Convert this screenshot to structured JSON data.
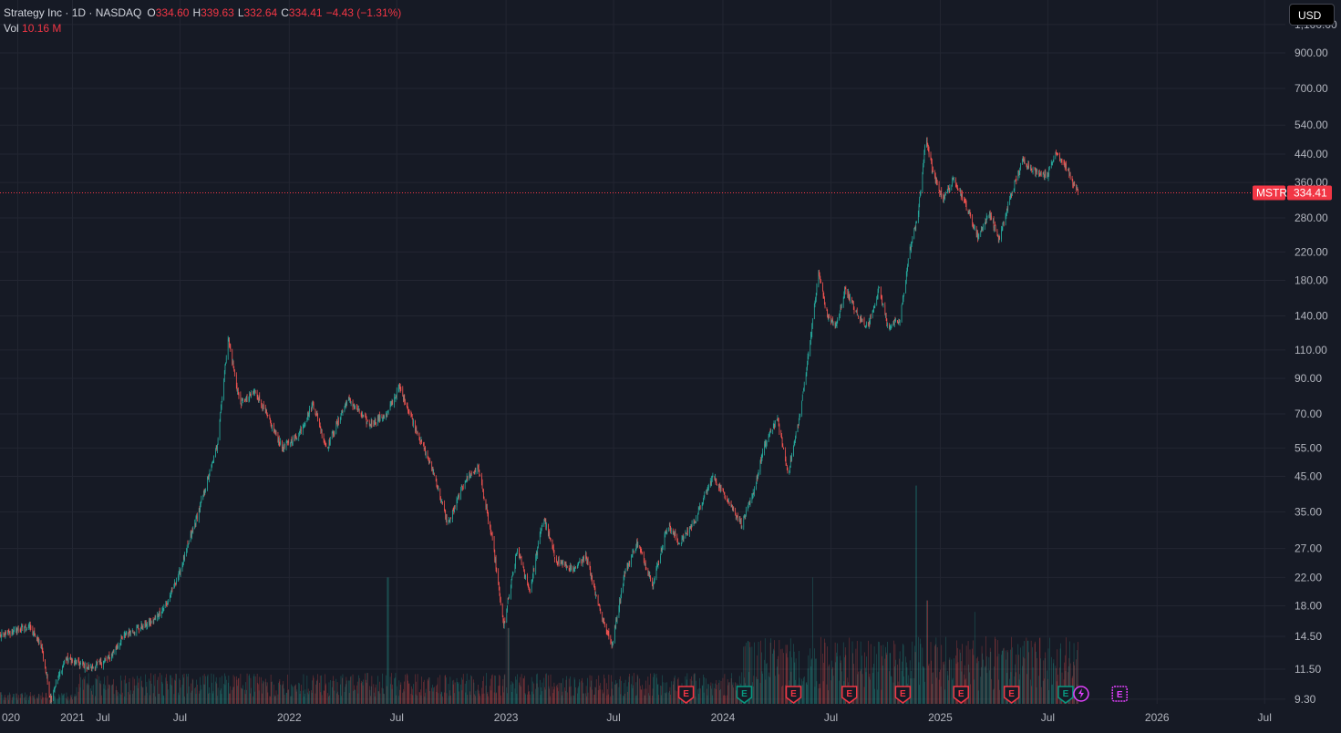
{
  "legend": {
    "symbol_line": "Strategy Inc · 1D · NASDAQ",
    "o_label": "O",
    "o_value": "334.60",
    "h_label": "H",
    "h_value": "339.63",
    "l_label": "L",
    "l_value": "332.64",
    "c_label": "C",
    "c_value": "334.41",
    "change": "−4.43 (−1.31%)",
    "vol_label": "Vol",
    "vol_value": "10.16 M"
  },
  "currency": "USD",
  "colors": {
    "background": "#161a25",
    "grid": "#232632",
    "up": "#26a69a",
    "down": "#ef5350",
    "price_line": "#f23645",
    "earnings_up": "#089981",
    "earnings_down": "#f23645",
    "upcoming": "#e040fb"
  },
  "chart_data": {
    "type": "candlestick",
    "symbol": "MSTR",
    "interval": "1D",
    "y_scale": "log",
    "ylim": [
      9.0,
      1150
    ],
    "xlim": [
      "2020-09-01",
      "2026-08-05"
    ],
    "last_price": 334.41,
    "last_price_label": "334.41",
    "y_ticks": [
      {
        "v": 9.3,
        "t": "9.30"
      },
      {
        "v": 11.5,
        "t": "11.50"
      },
      {
        "v": 14.5,
        "t": "14.50"
      },
      {
        "v": 18,
        "t": "18.00"
      },
      {
        "v": 22,
        "t": "22.00"
      },
      {
        "v": 27,
        "t": "27.00"
      },
      {
        "v": 35,
        "t": "35.00"
      },
      {
        "v": 45,
        "t": "45.00"
      },
      {
        "v": 55,
        "t": "55.00"
      },
      {
        "v": 70,
        "t": "70.00"
      },
      {
        "v": 90,
        "t": "90.00"
      },
      {
        "v": 110,
        "t": "110.00"
      },
      {
        "v": 140,
        "t": "140.00"
      },
      {
        "v": 180,
        "t": "180.00"
      },
      {
        "v": 220,
        "t": "220.00"
      },
      {
        "v": 280,
        "t": "280.00"
      },
      {
        "v": 360,
        "t": "360.00"
      },
      {
        "v": 440,
        "t": "440.00"
      },
      {
        "v": 540,
        "t": "540.00"
      },
      {
        "v": 700,
        "t": "700.00"
      },
      {
        "v": 900,
        "t": "900.00"
      },
      {
        "v": 1100,
        "t": "1,100.00"
      }
    ],
    "x_ticks": [
      {
        "d": "2020-10-01",
        "t": "020"
      },
      {
        "d": "2021-01-01",
        "t": "Jul",
        "fake": true
      },
      {
        "d": "2021-01-01",
        "t": "2021"
      },
      {
        "d": "2021-07-01",
        "t": "Jul"
      },
      {
        "d": "2022-01-01",
        "t": "2022"
      },
      {
        "d": "2022-07-01",
        "t": "Jul"
      },
      {
        "d": "2023-01-01",
        "t": "2023"
      },
      {
        "d": "2023-07-01",
        "t": "Jul"
      },
      {
        "d": "2024-01-01",
        "t": "2024"
      },
      {
        "d": "2024-07-01",
        "t": "Jul"
      },
      {
        "d": "2025-01-01",
        "t": "2025"
      },
      {
        "d": "2025-07-01",
        "t": "Jul"
      },
      {
        "d": "2026-01-01",
        "t": "2026"
      },
      {
        "d": "2026-07-01",
        "t": "Jul"
      }
    ],
    "anchors": [
      [
        "2020-09-01",
        14.5
      ],
      [
        "2020-10-20",
        15.6
      ],
      [
        "2020-11-10",
        13.5
      ],
      [
        "2020-11-25",
        9.3
      ],
      [
        "2020-12-20",
        12.4
      ],
      [
        "2021-02-01",
        11.6
      ],
      [
        "2021-03-01",
        12.3
      ],
      [
        "2021-04-01",
        14.8
      ],
      [
        "2021-05-15",
        16.0
      ],
      [
        "2021-06-10",
        18.5
      ],
      [
        "2021-07-01",
        23.0
      ],
      [
        "2021-08-05",
        37.0
      ],
      [
        "2021-09-01",
        55.0
      ],
      [
        "2021-09-20",
        120.0
      ],
      [
        "2021-10-10",
        75.0
      ],
      [
        "2021-11-05",
        82.0
      ],
      [
        "2021-12-20",
        55.0
      ],
      [
        "2022-01-15",
        60.0
      ],
      [
        "2022-02-10",
        75.0
      ],
      [
        "2022-03-05",
        55.0
      ],
      [
        "2022-04-10",
        78.0
      ],
      [
        "2022-05-15",
        65.0
      ],
      [
        "2022-06-15",
        70.0
      ],
      [
        "2022-07-05",
        85.0
      ],
      [
        "2022-08-10",
        58.0
      ],
      [
        "2022-09-01",
        46.0
      ],
      [
        "2022-09-25",
        32.0
      ],
      [
        "2022-10-25",
        44.0
      ],
      [
        "2022-11-15",
        48.0
      ],
      [
        "2022-12-10",
        28.0
      ],
      [
        "2022-12-28",
        15.5
      ],
      [
        "2023-01-20",
        27.0
      ],
      [
        "2023-02-10",
        20.0
      ],
      [
        "2023-03-05",
        34.0
      ],
      [
        "2023-03-25",
        25.0
      ],
      [
        "2023-04-25",
        23.0
      ],
      [
        "2023-05-15",
        26.0
      ],
      [
        "2023-06-10",
        17.0
      ],
      [
        "2023-06-28",
        13.6
      ],
      [
        "2023-07-20",
        23.0
      ],
      [
        "2023-08-10",
        28.0
      ],
      [
        "2023-09-05",
        21.0
      ],
      [
        "2023-09-30",
        32.0
      ],
      [
        "2023-10-20",
        28.0
      ],
      [
        "2023-11-15",
        33.0
      ],
      [
        "2023-12-15",
        45.0
      ],
      [
        "2024-01-10",
        38.0
      ],
      [
        "2024-02-01",
        32.0
      ],
      [
        "2024-02-20",
        39.0
      ],
      [
        "2024-03-10",
        55.0
      ],
      [
        "2024-04-01",
        68.0
      ],
      [
        "2024-04-20",
        46.0
      ],
      [
        "2024-05-10",
        70.0
      ],
      [
        "2024-05-25",
        110.0
      ],
      [
        "2024-06-10",
        190.0
      ],
      [
        "2024-06-25",
        140.0
      ],
      [
        "2024-07-10",
        130.0
      ],
      [
        "2024-07-25",
        170.0
      ],
      [
        "2024-08-15",
        140.0
      ],
      [
        "2024-09-01",
        130.0
      ],
      [
        "2024-09-20",
        170.0
      ],
      [
        "2024-10-05",
        130.0
      ],
      [
        "2024-10-25",
        135.0
      ],
      [
        "2024-11-10",
        220.0
      ],
      [
        "2024-11-25",
        290.0
      ],
      [
        "2024-12-08",
        500.0
      ],
      [
        "2024-12-20",
        380.0
      ],
      [
        "2025-01-05",
        320.0
      ],
      [
        "2025-01-25",
        370.0
      ],
      [
        "2025-02-15",
        300.0
      ],
      [
        "2025-03-05",
        245.0
      ],
      [
        "2025-03-25",
        290.0
      ],
      [
        "2025-04-10",
        240.0
      ],
      [
        "2025-04-30",
        330.0
      ],
      [
        "2025-05-20",
        420.0
      ],
      [
        "2025-06-10",
        390.0
      ],
      [
        "2025-07-01",
        380.0
      ],
      [
        "2025-07-15",
        450.0
      ],
      [
        "2025-08-01",
        400.0
      ],
      [
        "2025-08-15",
        350.0
      ],
      [
        "2025-08-21",
        334.41
      ]
    ],
    "volume_spikes": [
      [
        "2022-06-16",
        0.55
      ],
      [
        "2023-01-05",
        0.33
      ],
      [
        "2024-06-01",
        0.55
      ],
      [
        "2024-11-22",
        0.95
      ],
      [
        "2024-12-10",
        0.45
      ],
      [
        "2025-03-01",
        0.4
      ]
    ],
    "earnings": [
      {
        "d": "2023-10-31",
        "kind": "down"
      },
      {
        "d": "2024-02-06",
        "kind": "up"
      },
      {
        "d": "2024-04-29",
        "kind": "down"
      },
      {
        "d": "2024-08-01",
        "kind": "down"
      },
      {
        "d": "2024-10-30",
        "kind": "down"
      },
      {
        "d": "2025-02-05",
        "kind": "down"
      },
      {
        "d": "2025-05-01",
        "kind": "down"
      },
      {
        "d": "2025-07-31",
        "kind": "up"
      }
    ],
    "upcoming_earnings": {
      "d": "2025-10-30"
    },
    "dividend_marker": {
      "d": "2025-08-20"
    }
  }
}
